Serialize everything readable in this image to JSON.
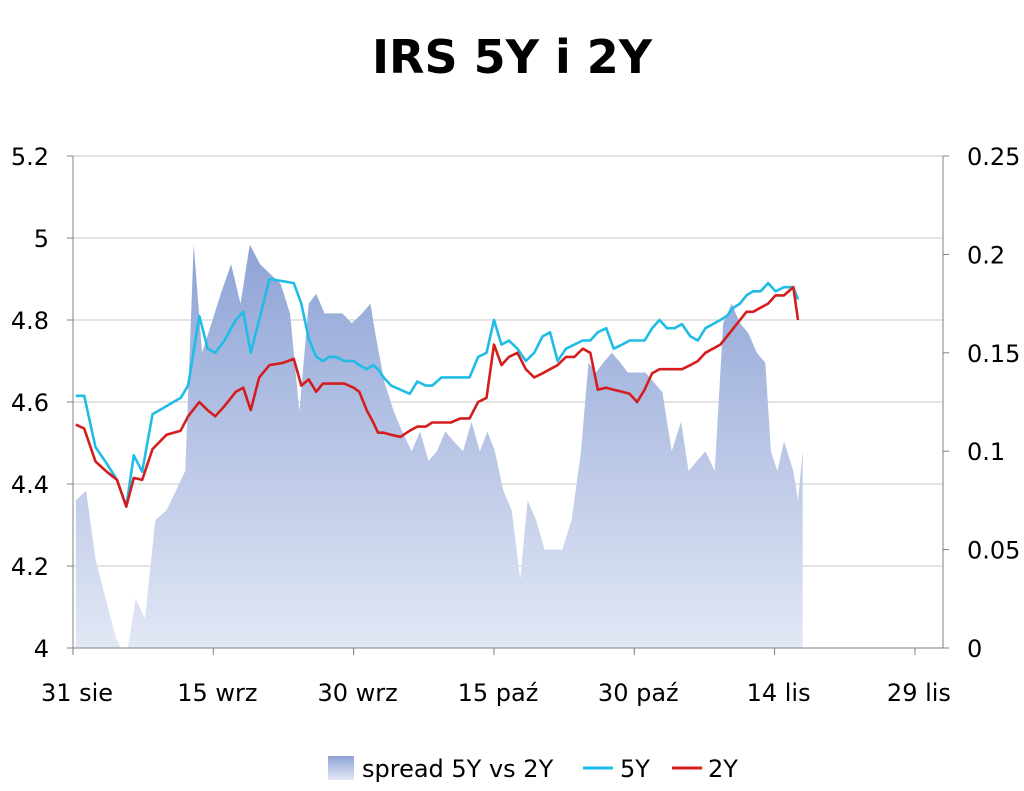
{
  "chart_data": {
    "type": "line",
    "title": "IRS 5Y i 2Y",
    "y_left": {
      "min": 4.0,
      "max": 5.2,
      "ticks": [
        "5.2",
        "5",
        "4.8",
        "4.6",
        "4.4",
        "4.2",
        "4"
      ]
    },
    "y_right": {
      "min": 0,
      "max": 0.25,
      "ticks": [
        "0.25",
        "0.2",
        "0.15",
        "0.1",
        "0.05",
        "0"
      ]
    },
    "x_ticks": [
      {
        "label": "31 sie",
        "day": 0
      },
      {
        "label": "15 wrz",
        "day": 15
      },
      {
        "label": "30 wrz",
        "day": 30
      },
      {
        "label": "15 paź",
        "day": 45
      },
      {
        "label": "30 paź",
        "day": 60
      },
      {
        "label": "14 lis",
        "day": 75
      },
      {
        "label": "29 lis",
        "day": 90
      }
    ],
    "x_max_day": 93,
    "grid": true,
    "legend_position": "bottom",
    "series": [
      {
        "name": "spread 5Y vs 2Y",
        "kind": "area",
        "axis": "right",
        "color": "#9aaedb",
        "points": [
          [
            0.3,
            0.075
          ],
          [
            1.4,
            0.08
          ],
          [
            2.4,
            0.045
          ],
          [
            3.5,
            0.025
          ],
          [
            4.6,
            0.005
          ],
          [
            5.7,
            -0.005
          ],
          [
            6.7,
            0.025
          ],
          [
            7.7,
            0.015
          ],
          [
            8.8,
            0.065
          ],
          [
            10.0,
            0.07
          ],
          [
            11.0,
            0.08
          ],
          [
            12.0,
            0.09
          ],
          [
            12.9,
            0.205
          ],
          [
            13.8,
            0.15
          ],
          [
            14.8,
            0.165
          ],
          [
            15.8,
            0.18
          ],
          [
            16.9,
            0.195
          ],
          [
            17.9,
            0.175
          ],
          [
            18.9,
            0.205
          ],
          [
            20.0,
            0.195
          ],
          [
            21.1,
            0.19
          ],
          [
            22.2,
            0.185
          ],
          [
            23.2,
            0.17
          ],
          [
            24.2,
            0.12
          ],
          [
            25.2,
            0.175
          ],
          [
            26.0,
            0.18
          ],
          [
            26.9,
            0.17
          ],
          [
            27.8,
            0.17
          ],
          [
            28.8,
            0.17
          ],
          [
            29.8,
            0.165
          ],
          [
            30.9,
            0.17
          ],
          [
            31.8,
            0.175
          ],
          [
            32.3,
            0.16
          ],
          [
            33.3,
            0.135
          ],
          [
            34.3,
            0.12
          ],
          [
            35.2,
            0.11
          ],
          [
            36.2,
            0.1
          ],
          [
            37.1,
            0.11
          ],
          [
            38.0,
            0.095
          ],
          [
            38.9,
            0.1
          ],
          [
            39.8,
            0.11
          ],
          [
            40.7,
            0.105
          ],
          [
            41.7,
            0.1
          ],
          [
            42.6,
            0.115
          ],
          [
            43.5,
            0.1
          ],
          [
            44.3,
            0.11
          ],
          [
            45.1,
            0.1
          ],
          [
            46.0,
            0.08
          ],
          [
            46.9,
            0.07
          ],
          [
            47.8,
            0.035
          ],
          [
            48.6,
            0.075
          ],
          [
            49.5,
            0.065
          ],
          [
            50.4,
            0.05
          ],
          [
            51.4,
            0.05
          ],
          [
            52.3,
            0.05
          ],
          [
            53.3,
            0.065
          ],
          [
            54.3,
            0.1
          ],
          [
            55.1,
            0.145
          ],
          [
            55.9,
            0.14
          ],
          [
            56.7,
            0.145
          ],
          [
            57.6,
            0.15
          ],
          [
            58.5,
            0.145
          ],
          [
            59.3,
            0.14
          ],
          [
            60.2,
            0.14
          ],
          [
            61.2,
            0.14
          ],
          [
            62.1,
            0.135
          ],
          [
            63.0,
            0.13
          ],
          [
            64.0,
            0.1
          ],
          [
            65.0,
            0.115
          ],
          [
            65.8,
            0.09
          ],
          [
            66.7,
            0.095
          ],
          [
            67.6,
            0.1
          ],
          [
            68.6,
            0.09
          ],
          [
            69.5,
            0.165
          ],
          [
            70.4,
            0.175
          ],
          [
            71.3,
            0.165
          ],
          [
            72.2,
            0.16
          ],
          [
            73.1,
            0.15
          ],
          [
            74.0,
            0.145
          ],
          [
            74.6,
            0.1
          ],
          [
            75.3,
            0.09
          ],
          [
            76.0,
            0.105
          ],
          [
            77.0,
            0.09
          ],
          [
            77.5,
            0.075
          ],
          [
            78.0,
            0.1
          ]
        ]
      },
      {
        "name": "5Y",
        "kind": "line",
        "axis": "left",
        "color": "#1fbde6",
        "points": [
          [
            0.3,
            4.615
          ],
          [
            1.2,
            4.615
          ],
          [
            2.4,
            4.49
          ],
          [
            3.6,
            4.45
          ],
          [
            4.7,
            4.41
          ],
          [
            5.7,
            4.345
          ],
          [
            6.5,
            4.47
          ],
          [
            7.4,
            4.43
          ],
          [
            8.5,
            4.57
          ],
          [
            10.0,
            4.59
          ],
          [
            11.5,
            4.61
          ],
          [
            12.3,
            4.64
          ],
          [
            13.5,
            4.81
          ],
          [
            14.4,
            4.73
          ],
          [
            15.2,
            4.72
          ],
          [
            16.2,
            4.75
          ],
          [
            17.4,
            4.8
          ],
          [
            18.2,
            4.82
          ],
          [
            19.0,
            4.72
          ],
          [
            19.9,
            4.8
          ],
          [
            21.0,
            4.9
          ],
          [
            22.4,
            4.895
          ],
          [
            23.6,
            4.89
          ],
          [
            24.4,
            4.84
          ],
          [
            25.2,
            4.755
          ],
          [
            26.0,
            4.71
          ],
          [
            26.7,
            4.7
          ],
          [
            27.4,
            4.71
          ],
          [
            28.1,
            4.71
          ],
          [
            29.0,
            4.7
          ],
          [
            30.0,
            4.7
          ],
          [
            30.6,
            4.69
          ],
          [
            31.4,
            4.68
          ],
          [
            32.1,
            4.69
          ],
          [
            32.6,
            4.68
          ],
          [
            33.2,
            4.66
          ],
          [
            34.0,
            4.64
          ],
          [
            35.0,
            4.63
          ],
          [
            36.0,
            4.62
          ],
          [
            36.8,
            4.65
          ],
          [
            37.7,
            4.64
          ],
          [
            38.4,
            4.64
          ],
          [
            39.4,
            4.66
          ],
          [
            40.4,
            4.66
          ],
          [
            41.4,
            4.66
          ],
          [
            42.4,
            4.66
          ],
          [
            43.3,
            4.71
          ],
          [
            44.2,
            4.72
          ],
          [
            45.0,
            4.8
          ],
          [
            45.8,
            4.74
          ],
          [
            46.6,
            4.75
          ],
          [
            47.5,
            4.73
          ],
          [
            48.4,
            4.7
          ],
          [
            49.3,
            4.72
          ],
          [
            50.2,
            4.76
          ],
          [
            51.0,
            4.77
          ],
          [
            51.8,
            4.7
          ],
          [
            52.7,
            4.73
          ],
          [
            53.6,
            4.74
          ],
          [
            54.5,
            4.75
          ],
          [
            55.3,
            4.75
          ],
          [
            56.1,
            4.77
          ],
          [
            57.0,
            4.78
          ],
          [
            57.8,
            4.73
          ],
          [
            58.7,
            4.74
          ],
          [
            59.5,
            4.75
          ],
          [
            60.3,
            4.75
          ],
          [
            61.1,
            4.75
          ],
          [
            61.9,
            4.78
          ],
          [
            62.7,
            4.8
          ],
          [
            63.5,
            4.78
          ],
          [
            64.3,
            4.78
          ],
          [
            65.1,
            4.79
          ],
          [
            66.0,
            4.76
          ],
          [
            66.8,
            4.75
          ],
          [
            67.6,
            4.78
          ],
          [
            68.4,
            4.79
          ],
          [
            69.2,
            4.8
          ],
          [
            69.9,
            4.81
          ],
          [
            70.6,
            4.83
          ],
          [
            71.3,
            4.84
          ],
          [
            72.0,
            4.86
          ],
          [
            72.7,
            4.87
          ],
          [
            73.5,
            4.87
          ],
          [
            74.3,
            4.89
          ],
          [
            75.1,
            4.87
          ],
          [
            76.0,
            4.88
          ],
          [
            77.0,
            4.88
          ],
          [
            77.5,
            4.85
          ]
        ]
      },
      {
        "name": "2Y",
        "kind": "line",
        "axis": "left",
        "color": "#d41e1e",
        "points": [
          [
            0.3,
            4.545
          ],
          [
            1.2,
            4.535
          ],
          [
            2.4,
            4.455
          ],
          [
            3.6,
            4.43
          ],
          [
            4.7,
            4.41
          ],
          [
            5.7,
            4.345
          ],
          [
            6.5,
            4.415
          ],
          [
            7.4,
            4.41
          ],
          [
            8.5,
            4.485
          ],
          [
            10.0,
            4.52
          ],
          [
            11.5,
            4.53
          ],
          [
            12.3,
            4.565
          ],
          [
            13.5,
            4.6
          ],
          [
            14.4,
            4.58
          ],
          [
            15.2,
            4.565
          ],
          [
            16.2,
            4.59
          ],
          [
            17.4,
            4.625
          ],
          [
            18.2,
            4.635
          ],
          [
            19.0,
            4.58
          ],
          [
            19.9,
            4.66
          ],
          [
            21.0,
            4.69
          ],
          [
            22.4,
            4.695
          ],
          [
            23.6,
            4.705
          ],
          [
            24.4,
            4.64
          ],
          [
            25.2,
            4.655
          ],
          [
            26.0,
            4.625
          ],
          [
            26.7,
            4.645
          ],
          [
            27.4,
            4.645
          ],
          [
            28.1,
            4.645
          ],
          [
            29.0,
            4.645
          ],
          [
            30.0,
            4.635
          ],
          [
            30.6,
            4.625
          ],
          [
            31.4,
            4.58
          ],
          [
            32.1,
            4.55
          ],
          [
            32.6,
            4.525
          ],
          [
            33.2,
            4.525
          ],
          [
            34.0,
            4.52
          ],
          [
            35.0,
            4.515
          ],
          [
            36.0,
            4.53
          ],
          [
            36.8,
            4.54
          ],
          [
            37.7,
            4.54
          ],
          [
            38.4,
            4.55
          ],
          [
            39.4,
            4.55
          ],
          [
            40.4,
            4.55
          ],
          [
            41.4,
            4.56
          ],
          [
            42.4,
            4.56
          ],
          [
            43.3,
            4.6
          ],
          [
            44.2,
            4.61
          ],
          [
            45.0,
            4.74
          ],
          [
            45.8,
            4.69
          ],
          [
            46.6,
            4.71
          ],
          [
            47.5,
            4.72
          ],
          [
            48.4,
            4.68
          ],
          [
            49.3,
            4.66
          ],
          [
            50.2,
            4.67
          ],
          [
            51.0,
            4.68
          ],
          [
            51.8,
            4.69
          ],
          [
            52.7,
            4.71
          ],
          [
            53.6,
            4.71
          ],
          [
            54.5,
            4.73
          ],
          [
            55.3,
            4.72
          ],
          [
            56.1,
            4.63
          ],
          [
            57.0,
            4.635
          ],
          [
            57.8,
            4.63
          ],
          [
            58.7,
            4.625
          ],
          [
            59.5,
            4.62
          ],
          [
            60.3,
            4.6
          ],
          [
            61.1,
            4.63
          ],
          [
            61.9,
            4.67
          ],
          [
            62.7,
            4.68
          ],
          [
            63.5,
            4.68
          ],
          [
            64.3,
            4.68
          ],
          [
            65.1,
            4.68
          ],
          [
            66.0,
            4.69
          ],
          [
            66.8,
            4.7
          ],
          [
            67.6,
            4.72
          ],
          [
            68.4,
            4.73
          ],
          [
            69.2,
            4.74
          ],
          [
            69.9,
            4.76
          ],
          [
            70.6,
            4.78
          ],
          [
            71.3,
            4.8
          ],
          [
            72.0,
            4.82
          ],
          [
            72.7,
            4.82
          ],
          [
            73.5,
            4.83
          ],
          [
            74.3,
            4.84
          ],
          [
            75.1,
            4.86
          ],
          [
            76.0,
            4.86
          ],
          [
            77.0,
            4.88
          ],
          [
            77.5,
            4.8
          ]
        ]
      }
    ]
  }
}
